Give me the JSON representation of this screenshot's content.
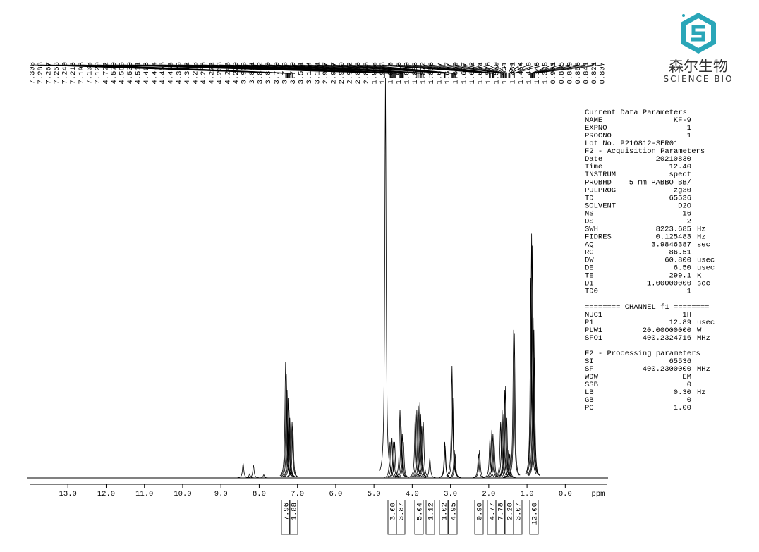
{
  "chart_data": {
    "type": "nmr",
    "x_label": "ppm",
    "xlim": [
      14,
      -1.1
    ],
    "xticks": [
      {
        "value": 13,
        "label": "13.0"
      },
      {
        "value": 12,
        "label": "12.0"
      },
      {
        "value": 11,
        "label": "11.0"
      },
      {
        "value": 10,
        "label": "10.0"
      },
      {
        "value": 9,
        "label": "9.0"
      },
      {
        "value": 8,
        "label": "8.0"
      },
      {
        "value": 7,
        "label": "7.0"
      },
      {
        "value": 6,
        "label": "6.0"
      },
      {
        "value": 5,
        "label": "5.0"
      },
      {
        "value": 4,
        "label": "4.0"
      },
      {
        "value": 3,
        "label": "3.0"
      },
      {
        "value": 2,
        "label": "2.0"
      },
      {
        "value": 1,
        "label": "1.0"
      },
      {
        "value": 0,
        "label": "0.0"
      }
    ],
    "ylim": [
      0,
      100
    ],
    "color": "#000000",
    "peaks": {
      "x": [
        8.42,
        8.25,
        8.15,
        7.88,
        7.31,
        7.29,
        7.27,
        7.24,
        7.22,
        7.2,
        7.14,
        7.12,
        4.7,
        4.58,
        4.53,
        4.49,
        4.46,
        4.32,
        4.29,
        4.26,
        4.23,
        3.92,
        3.88,
        3.84,
        3.8,
        3.78,
        3.75,
        3.71,
        3.54,
        3.15,
        3.14,
        2.96,
        2.94,
        2.9,
        2.88,
        2.27,
        2.24,
        1.97,
        1.92,
        1.89,
        1.86,
        1.69,
        1.65,
        1.61,
        1.58,
        1.56,
        1.53,
        1.48,
        1.45,
        1.35,
        1.33,
        0.9,
        0.88,
        0.86,
        0.84,
        0.82,
        0.81
      ],
      "values": [
        3.7,
        1,
        3.2,
        0.8,
        29,
        26,
        22,
        20,
        17,
        15,
        14,
        13,
        100,
        9,
        10,
        9,
        9,
        17,
        13,
        11,
        9,
        16,
        17,
        18,
        19,
        16,
        13,
        14,
        5,
        9,
        8,
        28,
        20,
        7,
        6,
        6,
        7,
        10,
        12,
        11,
        9,
        14,
        17,
        16,
        22,
        23,
        15,
        7,
        6,
        37,
        36,
        50,
        61,
        58,
        40,
        37,
        30
      ]
    },
    "peak_labels": [
      7.308,
      7.288,
      7.267,
      7.258,
      {
        "value": 7.24,
        "label": "7.240"
      },
      7.216,
      7.198,
      7.138,
      {
        "value": 7.12,
        "label": "7.120"
      },
      4.722,
      4.579,
      4.565,
      {
        "value": 4.53,
        "label": "4.530"
      },
      4.511,
      4.493,
      4.474,
      4.456,
      4.438,
      4.325,
      4.312,
      4.298,
      4.286,
      4.272,
      4.263,
      4.248,
      4.229,
      3.923,
      3.881,
      3.842,
      {
        "value": 3.8,
        "label": "3.800"
      },
      {
        "value": 3.78,
        "label": "3.780"
      },
      3.753,
      {
        "value": 3.71,
        "label": "3.710"
      },
      3.541,
      3.154,
      3.141,
      2.977,
      2.957,
      {
        "value": 2.94,
        "label": "2.940"
      },
      2.922,
      2.896,
      2.875,
      1.988,
      1.973,
      1.956,
      1.916,
      1.899,
      1.888,
      1.872,
      1.856,
      1.687,
      1.667,
      {
        "value": 1.65,
        "label": "1.650"
      },
      1.627,
      1.612,
      1.601,
      1.575,
      {
        "value": 1.56,
        "label": "1.560"
      },
      1.531,
      1.481,
      1.464,
      1.448,
      1.346,
      1.328,
      0.901,
      0.885,
      0.869,
      0.856,
      0.841,
      0.821,
      0.807
    ],
    "integrals": [
      7.96,
      1.88,
      {
        "value": 3,
        "label": "3.00"
      },
      3.87,
      5.04,
      1.12,
      1.02,
      4.95,
      {
        "value": 0.9,
        "label": "0.90"
      },
      4.77,
      7.78,
      {
        "value": 2.2,
        "label": "2.20"
      },
      3.07,
      {
        "value": 12,
        "label": "12.00"
      }
    ]
  },
  "logo": {
    "name": "森尔生物",
    "subtitle": "SCIENCE BIO"
  },
  "parameters": [
    [
      "Current Data Parameters"
    ],
    [
      "NAME",
      "KF-9"
    ],
    [
      "EXPNO",
      "1"
    ],
    [
      "PROCNO",
      "1"
    ],
    [
      "Lot No. P210812-SER01"
    ],
    [
      "F2 - Acquisition Parameters"
    ],
    [
      "Date_",
      "20210830"
    ],
    [
      "Time",
      "12.40"
    ],
    [
      "INSTRUM",
      "spect"
    ],
    [
      "PROBHD",
      "5 mm PABBO BB/"
    ],
    [
      "PULPROG",
      "zg30"
    ],
    [
      "TD",
      "65536"
    ],
    [
      "SOLVENT",
      "D2O"
    ],
    [
      "NS",
      "16"
    ],
    [
      "DS",
      "2"
    ],
    [
      "SWH",
      "8223.685",
      "Hz"
    ],
    [
      "FIDRES",
      "0.125483",
      "Hz"
    ],
    [
      "AQ",
      "3.9846387",
      "sec"
    ],
    [
      "RG",
      "86.51"
    ],
    [
      "DW",
      "60.800",
      "usec"
    ],
    [
      "DE",
      "6.50",
      "usec"
    ],
    [
      "TE",
      "299.1",
      "K"
    ],
    [
      "D1",
      "1.00000000",
      "sec"
    ],
    [
      "TD0",
      "1"
    ],
    [],
    [
      "======== CHANNEL f1 ========"
    ],
    [
      "NUC1",
      "1H"
    ],
    [
      "P1",
      "12.89",
      "usec"
    ],
    [
      "PLW1",
      "20.00000000",
      "W"
    ],
    [
      "SFO1",
      "400.2324716",
      "MHz"
    ],
    [],
    [
      "F2 - Processing parameters"
    ],
    [
      "SI",
      "65536"
    ],
    [
      "SF",
      "400.2300000",
      "MHz"
    ],
    [
      "WDW",
      "EM"
    ],
    [
      "SSB",
      "0"
    ],
    [
      "LB",
      "0.30",
      "Hz"
    ],
    [
      "GB",
      "0"
    ],
    [
      "PC",
      "1.00"
    ]
  ]
}
